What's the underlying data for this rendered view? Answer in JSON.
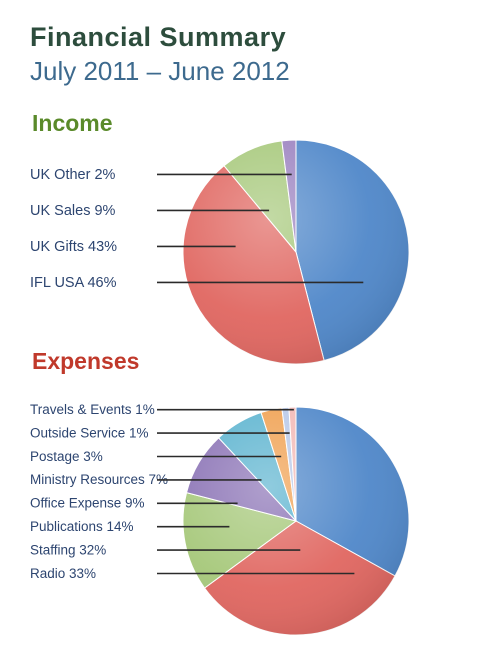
{
  "title": "Financial Summary",
  "subtitle": "July 2011 – June 2012",
  "colors": {
    "title": "#2d4d3d",
    "subtitle": "#3d6a8e",
    "income_heading": "#5a8a2a",
    "expenses_heading": "#c0392b",
    "label_text": "#2d4570",
    "leader_line": "#2b2b2b"
  },
  "chart_data": [
    {
      "type": "pie",
      "title": "Income",
      "slices": [
        {
          "label": "IFL USA 46%",
          "value": 46,
          "color": "#4f87c9"
        },
        {
          "label": "UK Gifts 43%",
          "value": 43,
          "color": "#e06660"
        },
        {
          "label": "UK Sales 9%",
          "value": 9,
          "color": "#a6c87a"
        },
        {
          "label": "UK Other 2%",
          "value": 2,
          "color": "#9b82c0"
        }
      ],
      "label_order_top_to_bottom": [
        "UK Other 2%",
        "UK Sales 9%",
        "UK Gifts 43%",
        "IFL USA 46%"
      ]
    },
    {
      "type": "pie",
      "title": "Expenses",
      "slices": [
        {
          "label": "Radio 33%",
          "value": 33,
          "color": "#4f87c9"
        },
        {
          "label": "Staffing 32%",
          "value": 32,
          "color": "#e06660"
        },
        {
          "label": "Publications 14%",
          "value": 14,
          "color": "#a6c87a"
        },
        {
          "label": "Office Expense 9%",
          "value": 9,
          "color": "#8a72b5"
        },
        {
          "label": "Ministry Resources 7%",
          "value": 7,
          "color": "#5bb3cf"
        },
        {
          "label": "Postage 3%",
          "value": 3,
          "color": "#f0a050"
        },
        {
          "label": "Outside Service 1%",
          "value": 1,
          "color": "#b8c8e8"
        },
        {
          "label": "Travels & Events 1%",
          "value": 1,
          "color": "#f2b8b5"
        }
      ],
      "label_order_top_to_bottom": [
        "Travels & Events 1%",
        "Outside Service 1%",
        "Postage 3%",
        "Ministry Resources 7%",
        "Office Expense 9%",
        "Publications 14%",
        "Staffing 32%",
        "Radio 33%"
      ]
    }
  ]
}
